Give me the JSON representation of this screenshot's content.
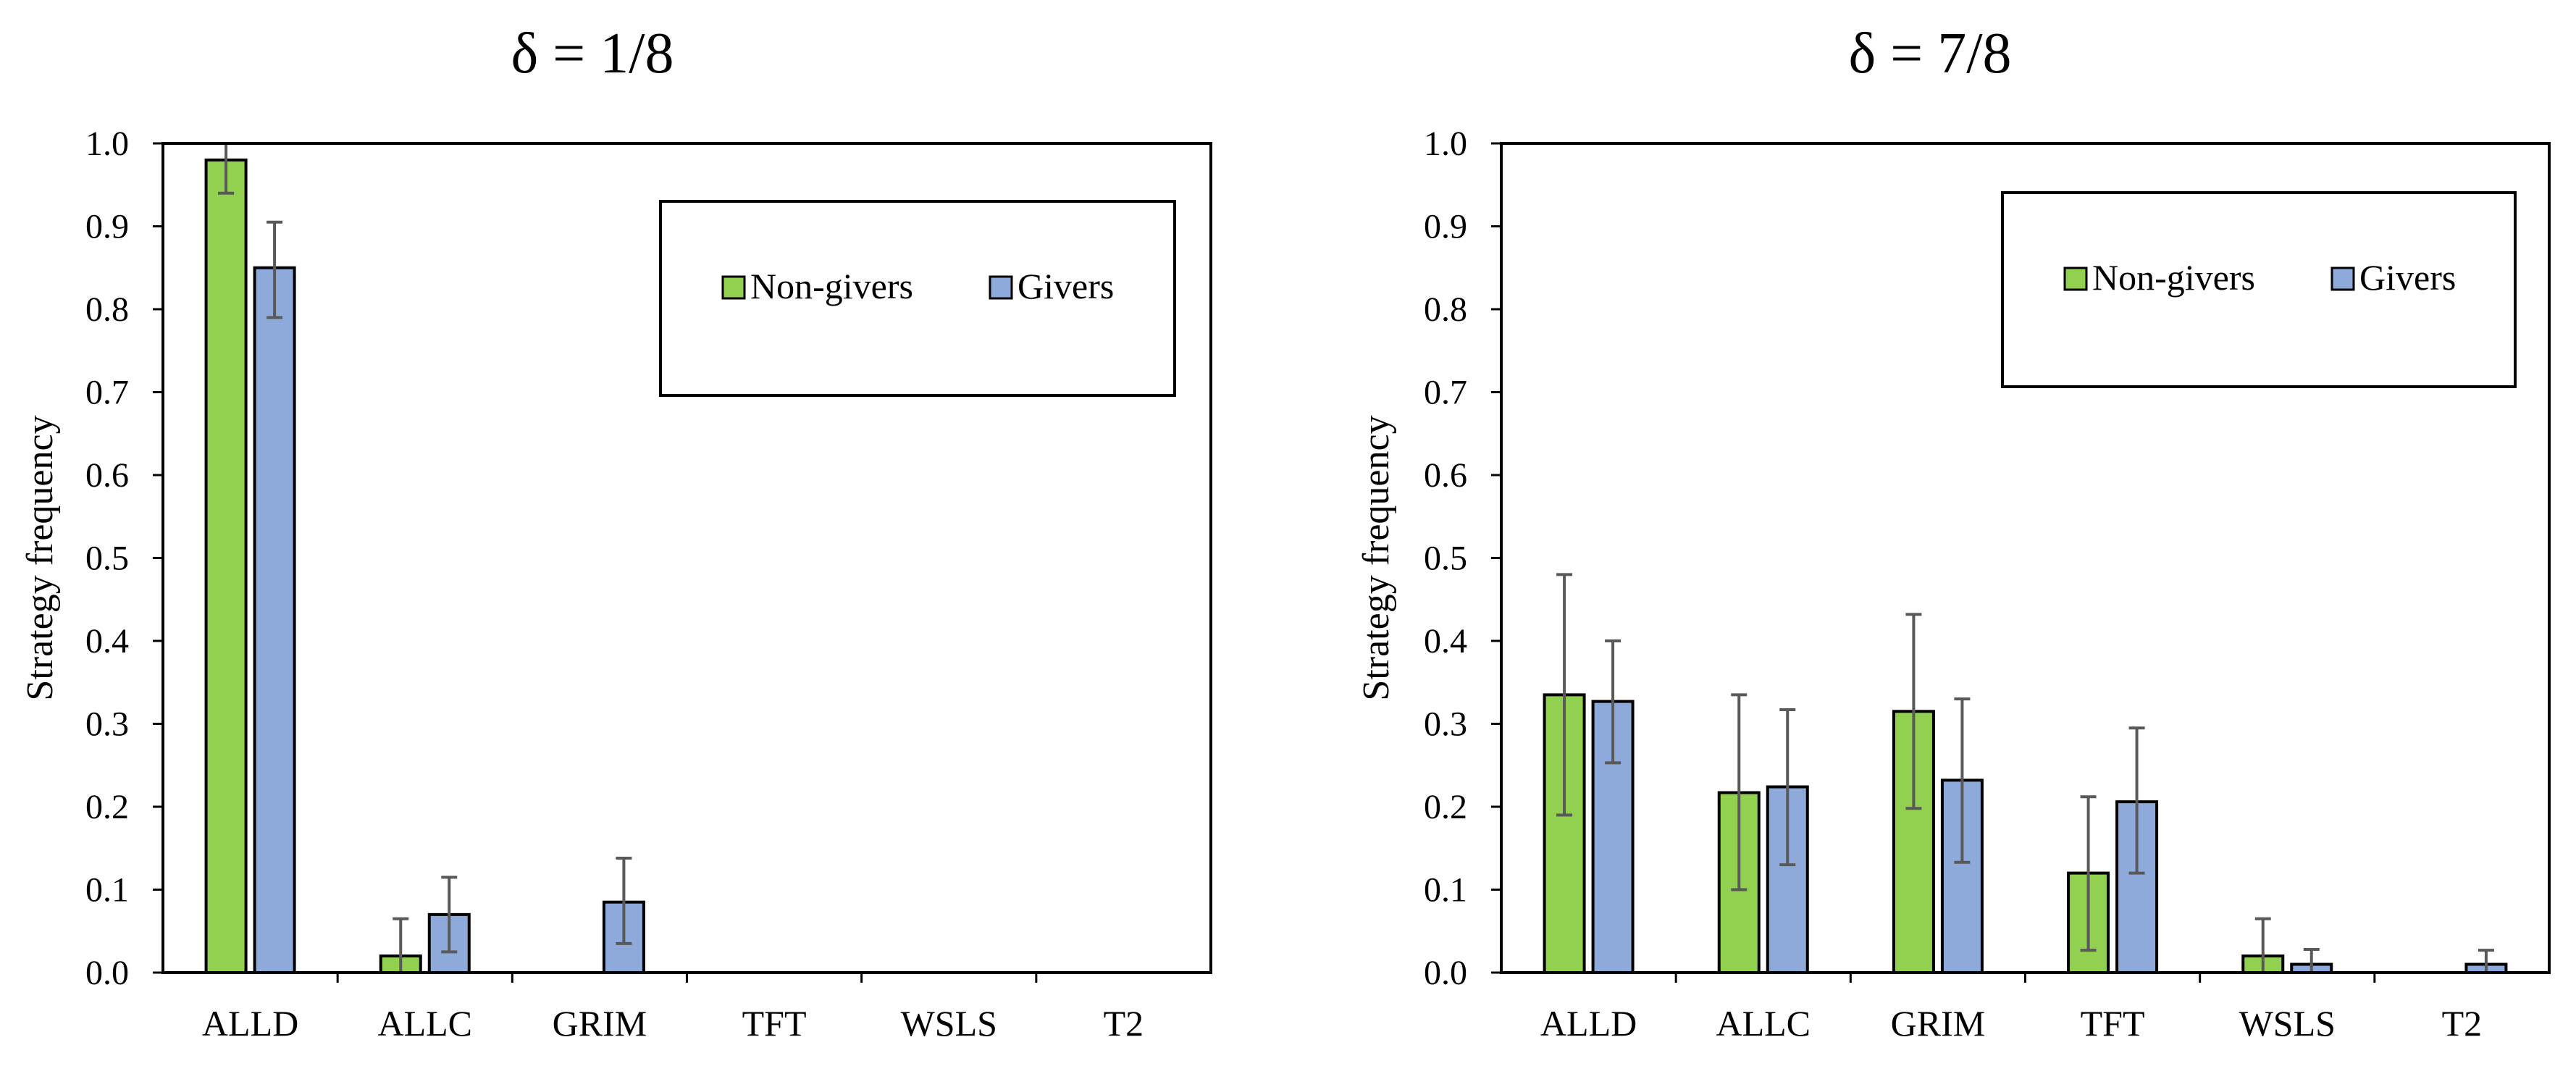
{
  "figure": {
    "description_free": true
  },
  "colors": {
    "non_givers": "#92d050",
    "givers": "#8eaadb",
    "error_bar": "#595959",
    "frame": "#000000"
  },
  "chart_data": [
    {
      "type": "bar",
      "title": "δ = 1/8",
      "xlabel": "",
      "ylabel": "Strategy frequency",
      "ylim": [
        0,
        1.0
      ],
      "yticks": [
        "0.0",
        "0.1",
        "0.2",
        "0.3",
        "0.4",
        "0.5",
        "0.6",
        "0.7",
        "0.8",
        "0.9",
        "1.0"
      ],
      "categories": [
        "ALLD",
        "ALLC",
        "GRIM",
        "TFT",
        "WSLS",
        "T2"
      ],
      "legend_position": "top-right",
      "series": [
        {
          "name": "Non-givers",
          "color": "#92d050",
          "values": [
            0.98,
            0.02,
            0.0,
            0.0,
            0.0,
            0.0
          ],
          "error_low": [
            0.94,
            0.0,
            0.0,
            0.0,
            0.0,
            0.0
          ],
          "error_high": [
            1.0,
            0.065,
            0.0,
            0.0,
            0.0,
            0.0
          ]
        },
        {
          "name": "Givers",
          "color": "#8eaadb",
          "values": [
            0.85,
            0.07,
            0.085,
            0.0,
            0.0,
            0.0
          ],
          "error_low": [
            0.79,
            0.025,
            0.035,
            0.0,
            0.0,
            0.0
          ],
          "error_high": [
            0.905,
            0.115,
            0.138,
            0.0,
            0.0,
            0.0
          ]
        }
      ]
    },
    {
      "type": "bar",
      "title": "δ = 7/8",
      "xlabel": "",
      "ylabel": "Strategy frequency",
      "ylim": [
        0,
        1.0
      ],
      "yticks": [
        "0.0",
        "0.1",
        "0.2",
        "0.3",
        "0.4",
        "0.5",
        "0.6",
        "0.7",
        "0.8",
        "0.9",
        "1.0"
      ],
      "categories": [
        "ALLD",
        "ALLC",
        "GRIM",
        "TFT",
        "WSLS",
        "T2"
      ],
      "legend_position": "top-right",
      "series": [
        {
          "name": "Non-givers",
          "color": "#92d050",
          "values": [
            0.335,
            0.217,
            0.315,
            0.12,
            0.02,
            0.0
          ],
          "error_low": [
            0.19,
            0.1,
            0.198,
            0.027,
            0.0,
            0.0
          ],
          "error_high": [
            0.48,
            0.335,
            0.432,
            0.212,
            0.065,
            0.0
          ]
        },
        {
          "name": "Givers",
          "color": "#8eaadb",
          "values": [
            0.327,
            0.224,
            0.232,
            0.206,
            0.01,
            0.01
          ],
          "error_low": [
            0.253,
            0.13,
            0.133,
            0.12,
            0.0,
            0.0
          ],
          "error_high": [
            0.4,
            0.317,
            0.33,
            0.295,
            0.028,
            0.027
          ]
        }
      ]
    }
  ]
}
